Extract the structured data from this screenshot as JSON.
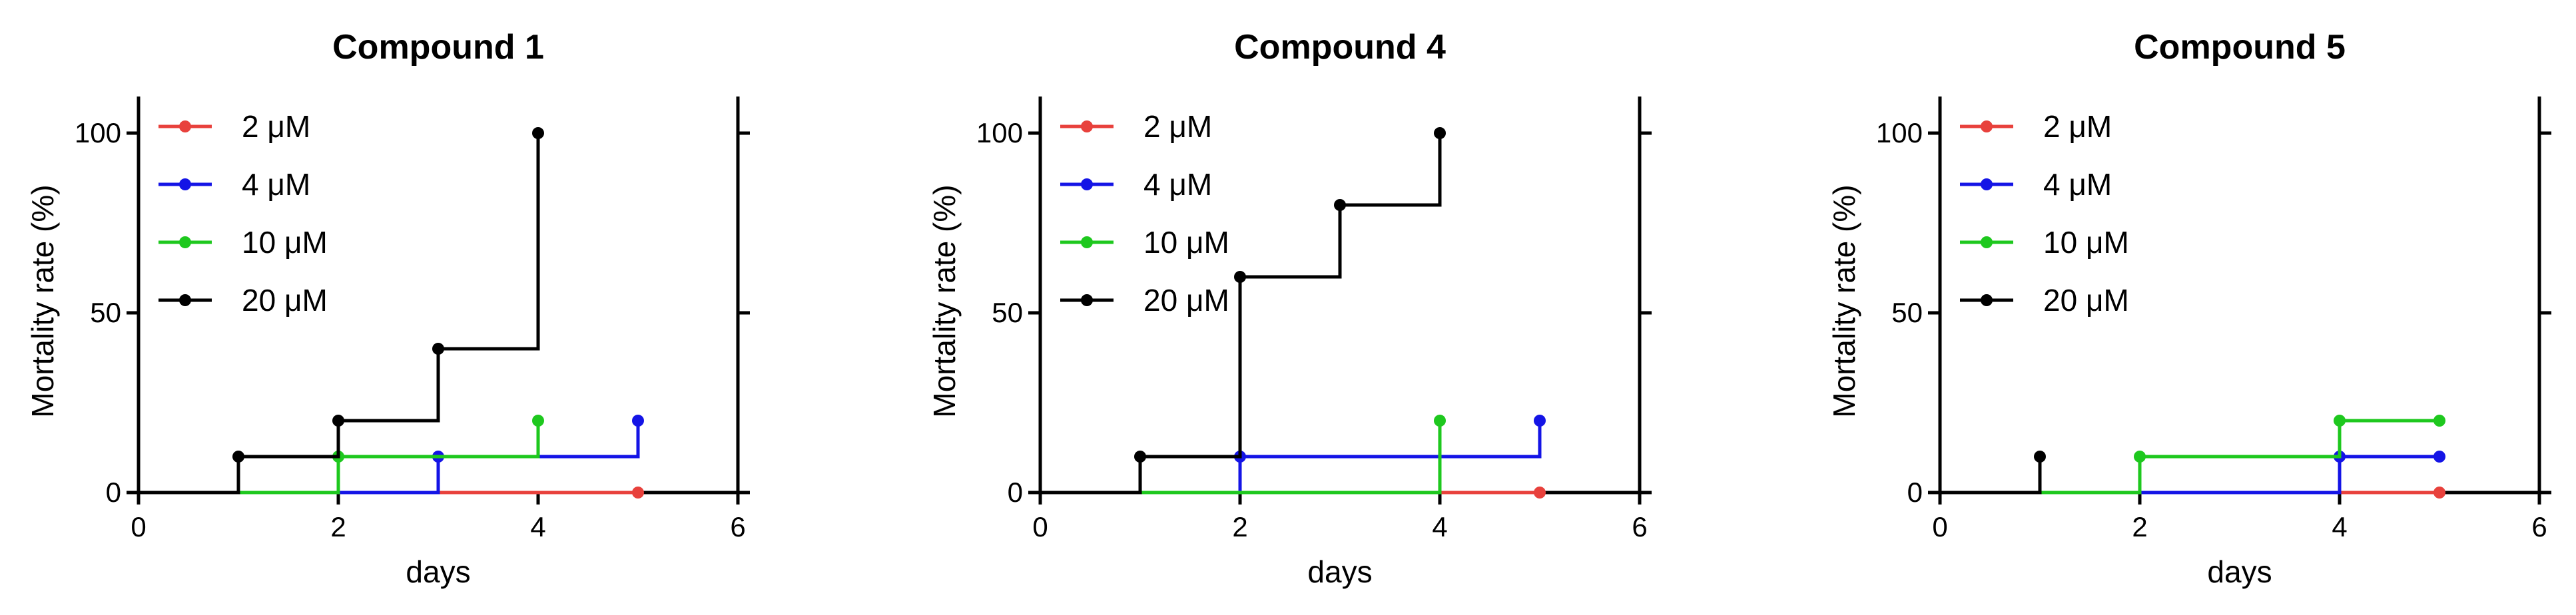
{
  "chart_data": [
    {
      "type": "line",
      "step": true,
      "title": "Compound 1",
      "xlabel": "days",
      "ylabel": "Mortality rate (%)",
      "xlim": [
        0,
        6
      ],
      "ylim": [
        0,
        100
      ],
      "xticks": [
        0,
        2,
        4,
        6
      ],
      "yticks": [
        0,
        50,
        100
      ],
      "legend_position": "top-left",
      "series": [
        {
          "name": "2 μM",
          "color": "#e8413c",
          "x": [
            0,
            5
          ],
          "y": [
            0,
            0
          ],
          "markers_x": [
            5
          ],
          "markers_y": [
            0
          ]
        },
        {
          "name": "4 μM",
          "color": "#1414e6",
          "x": [
            0,
            3,
            5
          ],
          "y": [
            0,
            10,
            20
          ],
          "markers_x": [
            3,
            5
          ],
          "markers_y": [
            10,
            20
          ]
        },
        {
          "name": "10 μM",
          "color": "#1ec81e",
          "x": [
            0,
            2,
            4
          ],
          "y": [
            0,
            10,
            20
          ],
          "markers_x": [
            2,
            4
          ],
          "markers_y": [
            10,
            20
          ]
        },
        {
          "name": "20 μM",
          "color": "#000000",
          "x": [
            0,
            1,
            2,
            3,
            4
          ],
          "y": [
            0,
            10,
            20,
            40,
            100
          ],
          "markers_x": [
            1,
            2,
            3,
            4
          ],
          "markers_y": [
            10,
            20,
            40,
            100
          ]
        }
      ]
    },
    {
      "type": "line",
      "step": true,
      "title": "Compound 4",
      "xlabel": "days",
      "ylabel": "Mortality rate (%)",
      "xlim": [
        0,
        6
      ],
      "ylim": [
        0,
        100
      ],
      "xticks": [
        0,
        2,
        4,
        6
      ],
      "yticks": [
        0,
        50,
        100
      ],
      "legend_position": "top-left",
      "series": [
        {
          "name": "2 μM",
          "color": "#e8413c",
          "x": [
            0,
            5
          ],
          "y": [
            0,
            0
          ],
          "markers_x": [
            5
          ],
          "markers_y": [
            0
          ]
        },
        {
          "name": "4 μM",
          "color": "#1414e6",
          "x": [
            0,
            2,
            5
          ],
          "y": [
            0,
            10,
            20
          ],
          "markers_x": [
            2,
            5
          ],
          "markers_y": [
            10,
            20
          ]
        },
        {
          "name": "10 μM",
          "color": "#1ec81e",
          "x": [
            0,
            4
          ],
          "y": [
            0,
            20
          ],
          "markers_x": [
            4
          ],
          "markers_y": [
            20
          ]
        },
        {
          "name": "20 μM",
          "color": "#000000",
          "x": [
            0,
            1,
            2,
            3,
            4
          ],
          "y": [
            0,
            10,
            60,
            80,
            100
          ],
          "markers_x": [
            1,
            2,
            3,
            4
          ],
          "markers_y": [
            10,
            60,
            80,
            100
          ]
        }
      ]
    },
    {
      "type": "line",
      "step": true,
      "title": "Compound 5",
      "xlabel": "days",
      "ylabel": "Mortality rate (%)",
      "xlim": [
        0,
        6
      ],
      "ylim": [
        0,
        100
      ],
      "xticks": [
        0,
        2,
        4,
        6
      ],
      "yticks": [
        0,
        50,
        100
      ],
      "legend_position": "top-left",
      "series": [
        {
          "name": "2 μM",
          "color": "#e8413c",
          "x": [
            0,
            5
          ],
          "y": [
            0,
            0
          ],
          "markers_x": [
            5
          ],
          "markers_y": [
            0
          ]
        },
        {
          "name": "4 μM",
          "color": "#1414e6",
          "x": [
            0,
            4,
            5
          ],
          "y": [
            0,
            10,
            10
          ],
          "markers_x": [
            4,
            5
          ],
          "markers_y": [
            10,
            10
          ]
        },
        {
          "name": "10 μM",
          "color": "#1ec81e",
          "x": [
            0,
            2,
            4,
            5
          ],
          "y": [
            0,
            10,
            20,
            20
          ],
          "markers_x": [
            2,
            4,
            5
          ],
          "markers_y": [
            10,
            20,
            20
          ]
        },
        {
          "name": "20 μM",
          "color": "#000000",
          "x": [
            0,
            1
          ],
          "y": [
            0,
            10
          ],
          "markers_x": [
            1
          ],
          "markers_y": [
            10
          ]
        }
      ]
    }
  ]
}
